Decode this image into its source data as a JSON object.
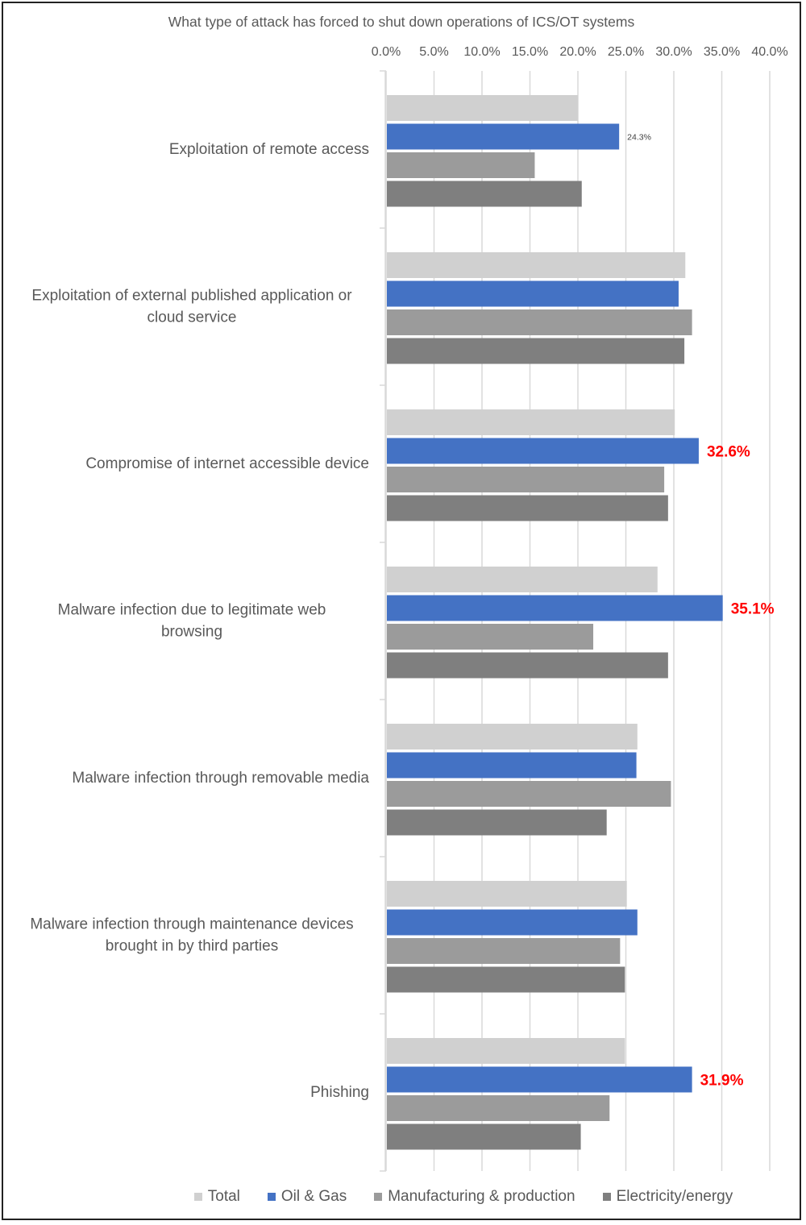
{
  "chart_data": {
    "type": "bar",
    "orientation": "horizontal",
    "title": "What type of attack has forced to shut down operations of ICS/OT systems",
    "xlabel": "",
    "ylabel": "",
    "xlim": [
      0,
      40
    ],
    "tick_labels": [
      "0.0%",
      "5.0%",
      "10.0%",
      "15.0%",
      "20.0%",
      "25.0%",
      "30.0%",
      "35.0%",
      "40.0%"
    ],
    "ticks": [
      0,
      5,
      10,
      15,
      20,
      25,
      30,
      35,
      40
    ],
    "grid": true,
    "legend_position": "bottom",
    "categories": [
      [
        "Exploitation of remote access"
      ],
      [
        "Exploitation of external published application or",
        "cloud service"
      ],
      [
        "Compromise of internet accessible device"
      ],
      [
        "Malware infection due to legitimate web",
        "browsing"
      ],
      [
        "Malware infection through removable media"
      ],
      [
        "Malware infection through maintenance devices",
        "brought in by third parties"
      ],
      [
        "Phishing"
      ]
    ],
    "series": [
      {
        "name": "Total",
        "color": "#d0d0d0",
        "values": [
          20.0,
          31.2,
          30.1,
          28.3,
          26.2,
          25.1,
          24.9
        ]
      },
      {
        "name": "Oil & Gas",
        "color": "#4472c4",
        "values": [
          24.3,
          30.5,
          32.6,
          35.1,
          26.1,
          26.2,
          31.9
        ]
      },
      {
        "name": "Manufacturing & production",
        "color": "#9b9b9b",
        "values": [
          15.5,
          31.9,
          29.0,
          21.6,
          29.7,
          24.4,
          23.3
        ]
      },
      {
        "name": "Electricity/energy",
        "color": "#7f7f7f",
        "values": [
          20.4,
          31.1,
          29.4,
          29.4,
          23.0,
          24.9,
          20.3
        ]
      }
    ],
    "data_labels": [
      {
        "category_index": 0,
        "series_index": 1,
        "text": "24.3%",
        "style": "small"
      },
      {
        "category_index": 2,
        "series_index": 1,
        "text": "32.6%",
        "style": "highlight"
      },
      {
        "category_index": 3,
        "series_index": 1,
        "text": "35.1%",
        "style": "highlight"
      },
      {
        "category_index": 6,
        "series_index": 1,
        "text": "31.9%",
        "style": "highlight"
      }
    ],
    "highlight_color": "#ff0000"
  }
}
